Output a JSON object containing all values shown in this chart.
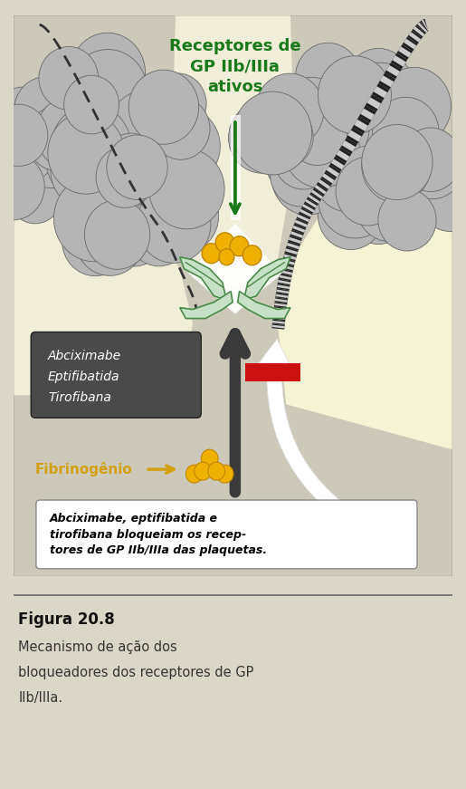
{
  "bg_color": "#dbd7c8",
  "panel_bg": "#cdc9ba",
  "gap_color": "#f0eed8",
  "right_gap_color": "#f5f3d5",
  "title": "Figura 20.8",
  "caption_line1": "Mecanismo de ação dos",
  "caption_line2": "bloqueadores dos receptores de GP",
  "caption_line3": "IIb/IIIa.",
  "receptor_label": "Receptores de\nGP IIb/IIIa\nativos",
  "receptor_color": "#1a7a1a",
  "drug_box_text_line1": "Abciximabe",
  "drug_box_text_line2": "Eptifibatida",
  "drug_box_text_line3": "Tirofibana",
  "drug_box_bg": "#4a4a4a",
  "drug_box_text_color": "#ffffff",
  "fibrinogen_label": "Fibrinogênio",
  "fibrinogen_color": "#d4a010",
  "annotation_text_line1": "Abciximabe, eptifibatida e",
  "annotation_text_line2": "tirofibana bloqueiam os recep-",
  "annotation_text_line3": "tores de GP IIb/IIIa das plaquetas.",
  "platelet_color_light": "#b5b5b5",
  "platelet_color_dark": "#6a6a6a",
  "receptor_green_light": "#c8e0c8",
  "receptor_green_dark": "#4a8a4a",
  "bead_color": "#f0b000",
  "bead_edge": "#c08800",
  "arrow_dark": "#3a3a3a",
  "red_bar_color": "#cc1111",
  "white_arrow_color": "#f5f5f5",
  "membrane_stripe_dark": "#444444",
  "membrane_stripe_light": "#888888"
}
